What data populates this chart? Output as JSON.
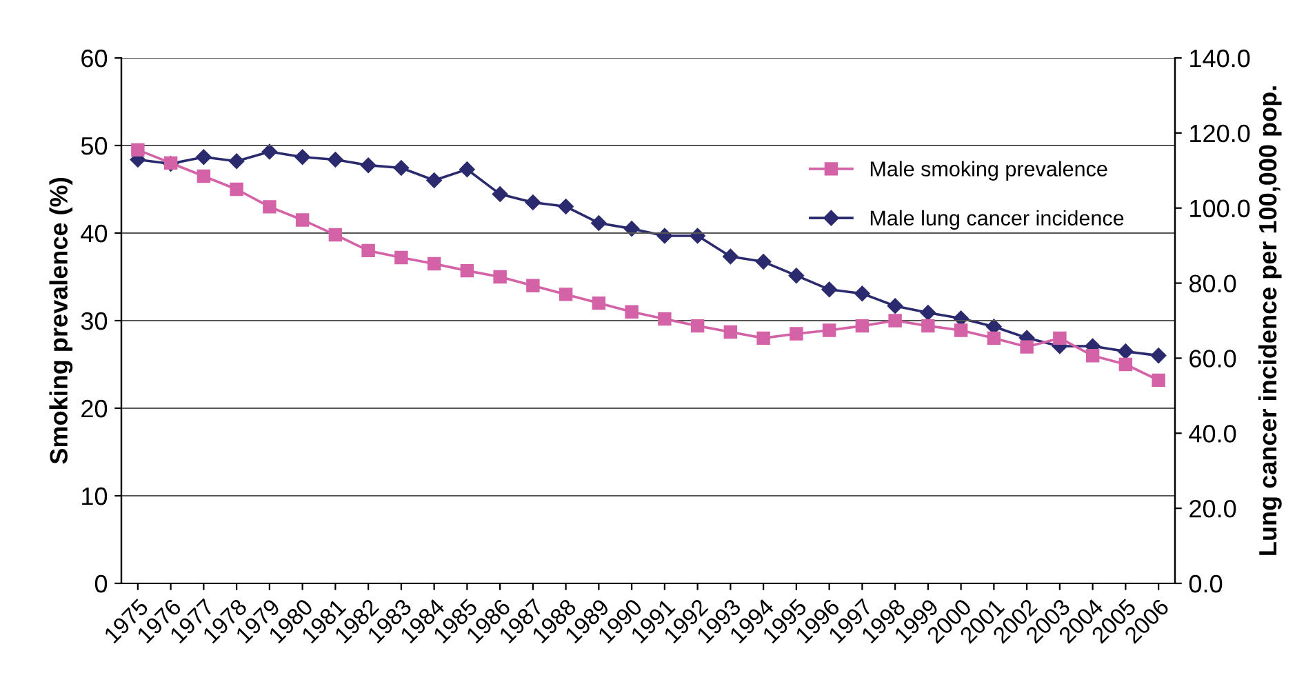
{
  "chart_data": {
    "type": "line",
    "ylabel": "Smoking prevalence (%)",
    "y2label": "Lung cancer incidence per 100,000 pop.",
    "categories": [
      "1975",
      "1976",
      "1977",
      "1978",
      "1979",
      "1980",
      "1981",
      "1982",
      "1983",
      "1984",
      "1985",
      "1986",
      "1987",
      "1988",
      "1989",
      "1990",
      "1991",
      "1992",
      "1993",
      "1994",
      "1995",
      "1996",
      "1997",
      "1998",
      "1999",
      "2000",
      "2001",
      "2002",
      "2003",
      "2004",
      "2005",
      "2006"
    ],
    "series": [
      {
        "name": "Male smoking prevalence",
        "color": "#d462a6",
        "marker": "square",
        "values": [
          49.5,
          48,
          46.5,
          45,
          43,
          41.5,
          39.8,
          38,
          37.2,
          36.5,
          35.7,
          35,
          34,
          33,
          32,
          31,
          30.2,
          29.4,
          28.7,
          28,
          28.5,
          28.9,
          29.4,
          30,
          29.4,
          28.9,
          28,
          27,
          28,
          26,
          25,
          23.2
        ]
      },
      {
        "name": "Male lung cancer incidence",
        "color": "#2b2a6e",
        "marker": "diamond",
        "axis": "y2",
        "values": [
          112.9,
          111.8,
          113.6,
          112.5,
          115,
          113.6,
          112.9,
          111.4,
          110.7,
          107.4,
          110.3,
          103.7,
          101.5,
          100.4,
          96,
          94.5,
          92.6,
          92.6,
          87.1,
          85.7,
          82,
          78.3,
          77.2,
          73.9,
          72.1,
          70.6,
          68.4,
          65.4,
          63.2,
          63.2,
          61.8,
          60.7
        ]
      }
    ],
    "ylim": [
      0,
      60
    ],
    "yticks": [
      0,
      10,
      20,
      30,
      40,
      50,
      60
    ],
    "y2lim": [
      0,
      140
    ],
    "y2ticks": [
      {
        "value": 0,
        "label": "0.0"
      },
      {
        "value": 20,
        "label": "20.0"
      },
      {
        "value": 40,
        "label": "40.0"
      },
      {
        "value": 60,
        "label": "60.0"
      },
      {
        "value": 80,
        "label": "80.0"
      },
      {
        "value": 100,
        "label": "100.0"
      },
      {
        "value": 120,
        "label": "120.0"
      },
      {
        "value": 140,
        "label": "140.0"
      }
    ],
    "grid": "y",
    "legend": "top right",
    "line_style": "solid"
  }
}
